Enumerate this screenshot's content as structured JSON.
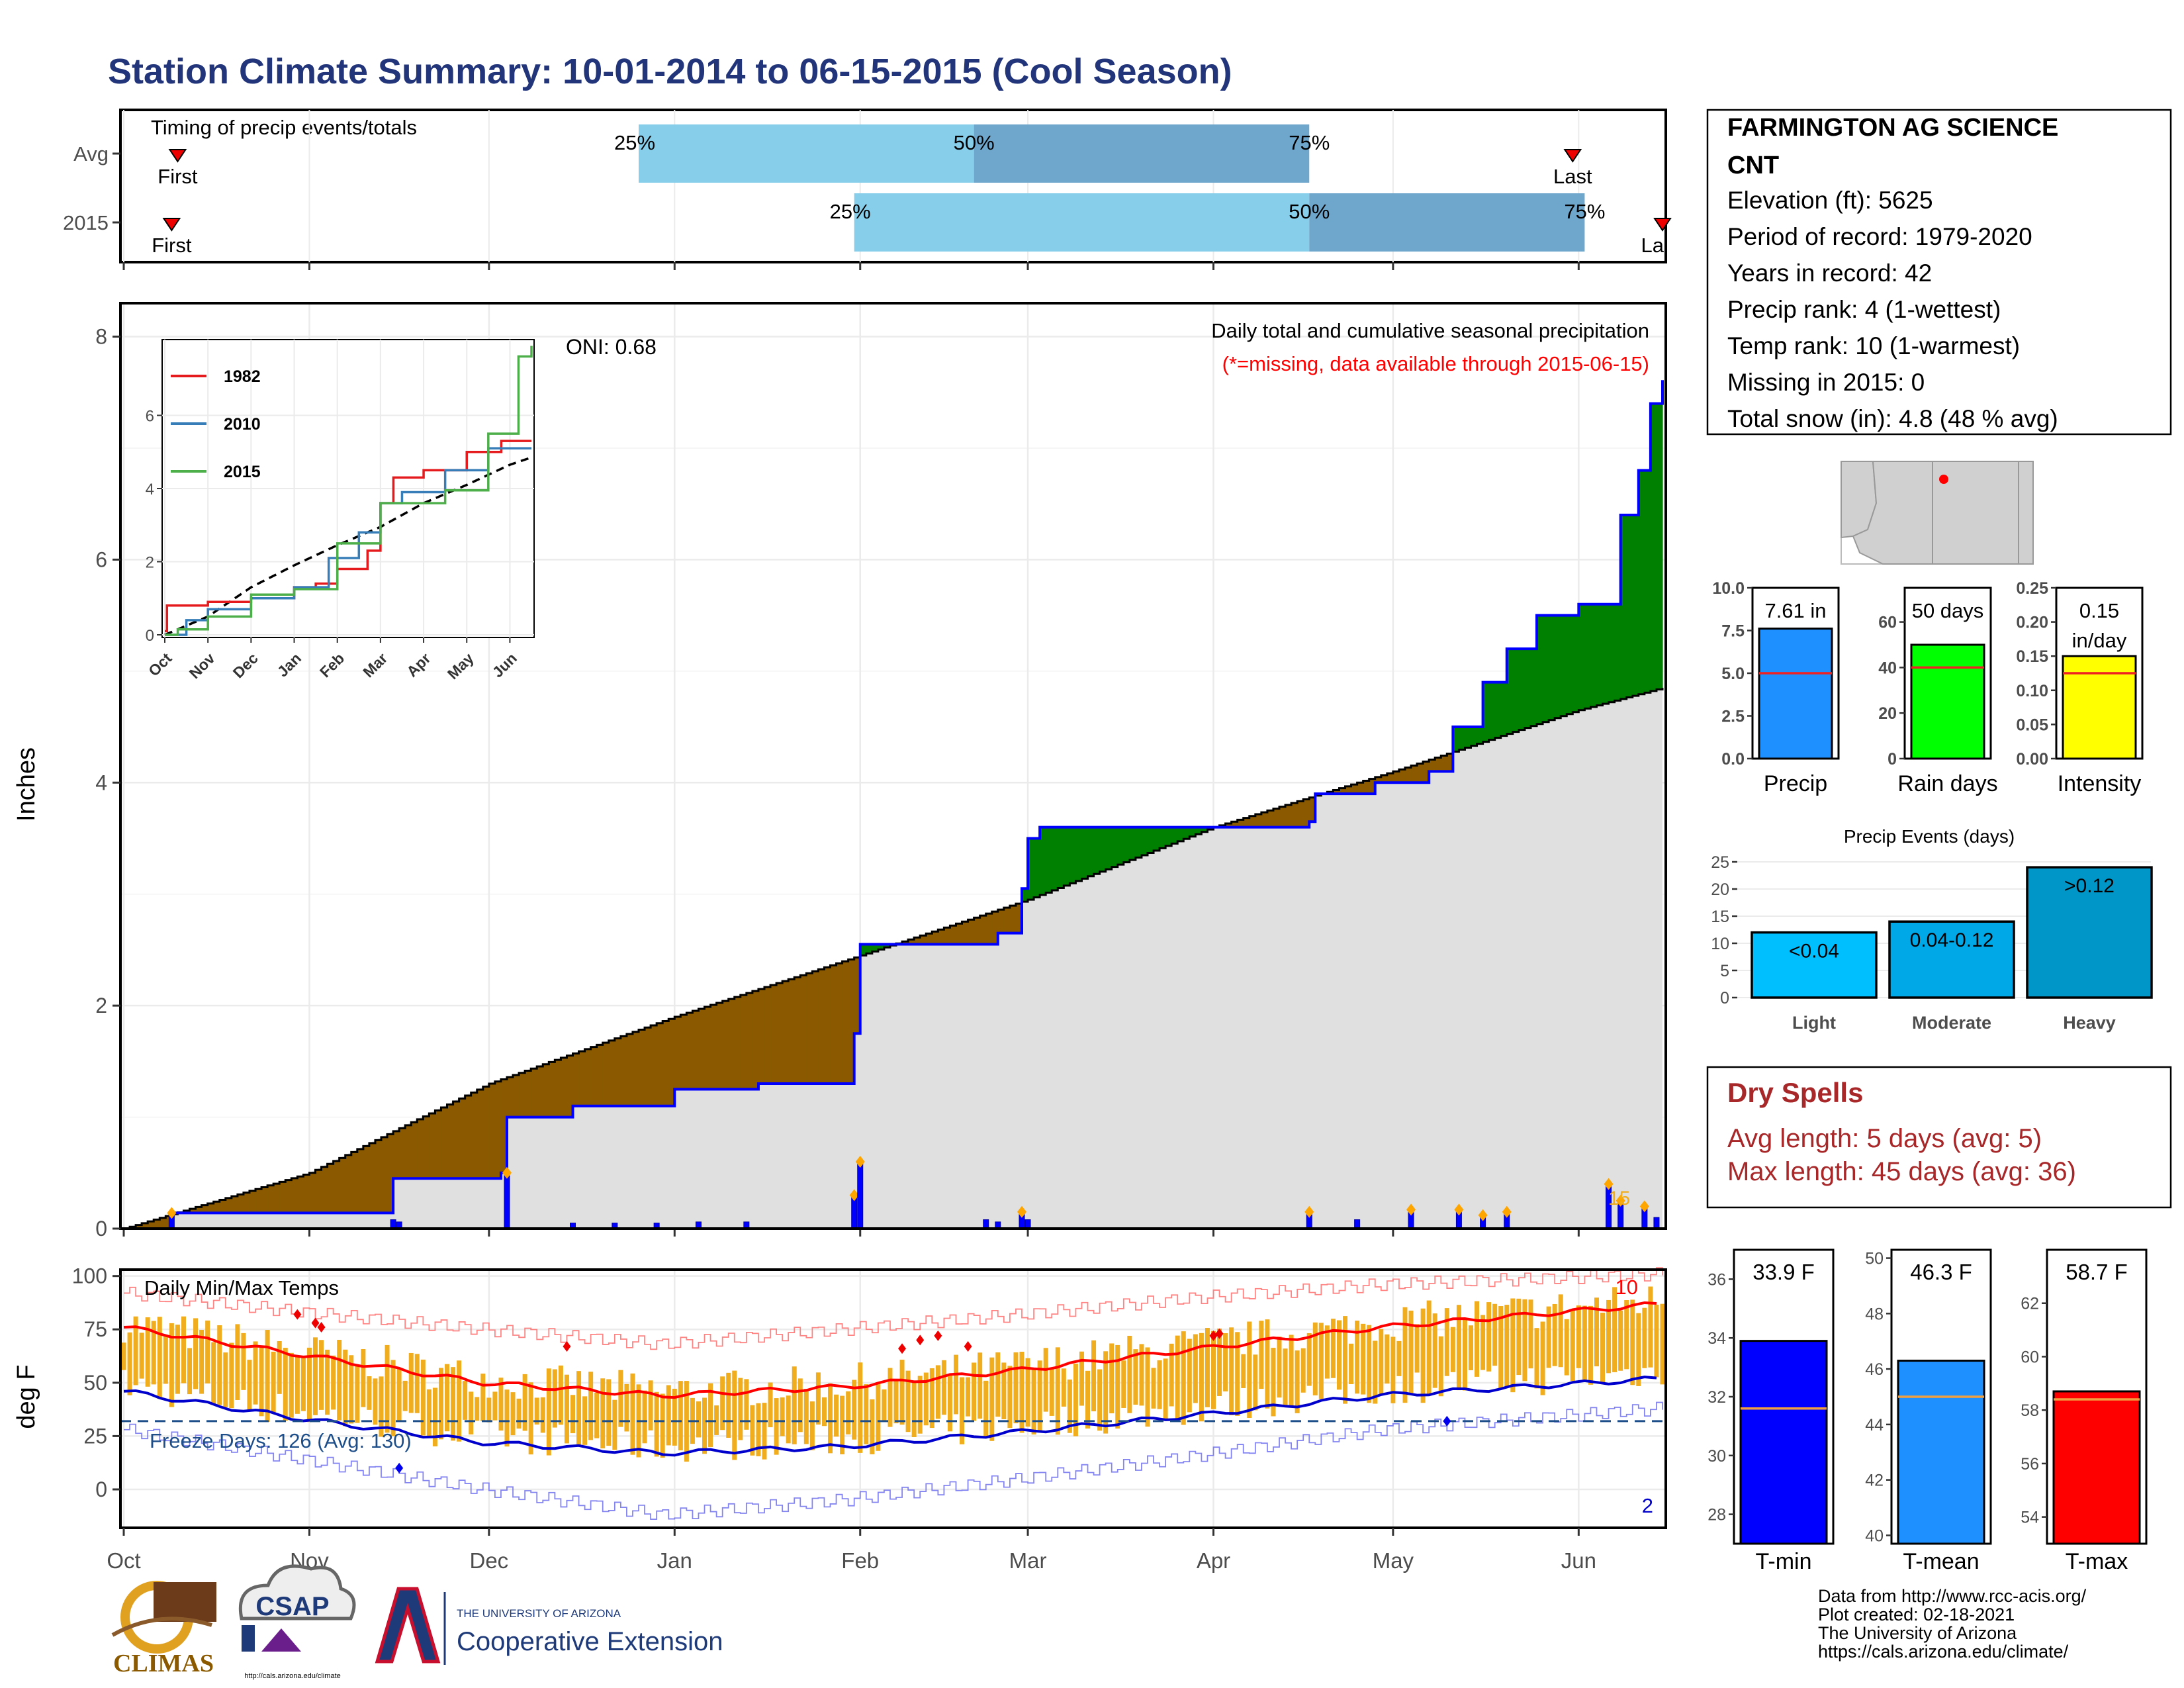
{
  "title": "Station Climate Summary: 10-01-2014 to 06-15-2015 (Cool Season)",
  "colors": {
    "title": "#22357a",
    "bar_light": "#87ceeb",
    "bar_mid": "#6ea6cc",
    "above_avg": "#008000",
    "below_avg": "#8b5a00",
    "normal_fill": "#e0e0e0",
    "daily_bar": "#0000ff",
    "temp_bar": "#f0ad1e",
    "tmax_line": "#ff0000",
    "tmin_line": "#0000cc",
    "dry_spell": "#a8282a"
  },
  "timing_panel": {
    "label": "Timing of precip events/totals",
    "first_label": "First",
    "last_label": "Last",
    "rows": [
      {
        "name": "Avg",
        "first": "10-10",
        "p25": "12-26",
        "p50": "02-20",
        "p75": "04-17",
        "last": "05-31",
        "p25_label": "25%",
        "p50_label": "50%",
        "p75_label": "75%"
      },
      {
        "name": "2015",
        "first": "10-09",
        "p25": "01-31",
        "p50": "04-17",
        "p75": "06-02",
        "last": "06-15",
        "p25_label": "25%",
        "p50_label": "50%",
        "p75_label": "75%"
      }
    ],
    "last_truncated_label": "La"
  },
  "chart_data": [
    {
      "type": "area",
      "name": "cumulative_precip",
      "annotation_title": "Daily total and cumulative seasonal precipitation",
      "annotation_missing": "(*=missing, data available through 2015-06-15)",
      "oni": "ONI: 0.68",
      "ylabel": "Inches",
      "ylim": [
        0,
        8.3
      ],
      "yticks": [
        0,
        2,
        4,
        6,
        8
      ],
      "grid": true,
      "x_dates": [
        "2014-10-01",
        "2015-06-15"
      ],
      "month_labels": [
        "Oct",
        "Nov",
        "Dec",
        "Jan",
        "Feb",
        "Mar",
        "Apr",
        "May",
        "Jun"
      ],
      "normal_cumulative": [
        [
          "10-01",
          0
        ],
        [
          "11-01",
          0.5
        ],
        [
          "12-01",
          1.3
        ],
        [
          "01-01",
          1.9
        ],
        [
          "02-01",
          2.45
        ],
        [
          "03-01",
          2.95
        ],
        [
          "04-01",
          3.6
        ],
        [
          "05-01",
          4.1
        ],
        [
          "06-01",
          4.65
        ],
        [
          "06-15",
          4.85
        ]
      ],
      "observed_cumulative": [
        [
          "10-01",
          0
        ],
        [
          "10-09",
          0.14
        ],
        [
          "11-01",
          0.14
        ],
        [
          "11-15",
          0.45
        ],
        [
          "12-03",
          0.5
        ],
        [
          "12-04",
          1.0
        ],
        [
          "12-15",
          1.1
        ],
        [
          "01-01",
          1.25
        ],
        [
          "01-15",
          1.3
        ],
        [
          "01-31",
          1.75
        ],
        [
          "02-01",
          2.55
        ],
        [
          "02-21",
          2.55
        ],
        [
          "02-24",
          2.65
        ],
        [
          "02-28",
          3.05
        ],
        [
          "03-01",
          3.5
        ],
        [
          "03-03",
          3.6
        ],
        [
          "04-01",
          3.6
        ],
        [
          "04-17",
          3.65
        ],
        [
          "04-18",
          3.9
        ],
        [
          "04-28",
          4.0
        ],
        [
          "05-07",
          4.1
        ],
        [
          "05-11",
          4.5
        ],
        [
          "05-16",
          4.9
        ],
        [
          "05-20",
          5.2
        ],
        [
          "05-25",
          5.5
        ],
        [
          "06-01",
          5.6
        ],
        [
          "06-08",
          6.4
        ],
        [
          "06-11",
          6.8
        ],
        [
          "06-13",
          7.4
        ],
        [
          "06-15",
          7.61
        ]
      ],
      "daily_precip": [
        [
          "10-09",
          0.14
        ],
        [
          "11-15",
          0.08
        ],
        [
          "11-16",
          0.06
        ],
        [
          "12-04",
          0.5
        ],
        [
          "12-15",
          0.05
        ],
        [
          "12-22",
          0.05
        ],
        [
          "12-29",
          0.05
        ],
        [
          "01-05",
          0.06
        ],
        [
          "01-13",
          0.06
        ],
        [
          "01-31",
          0.3
        ],
        [
          "02-01",
          0.6
        ],
        [
          "02-22",
          0.08
        ],
        [
          "02-24",
          0.06
        ],
        [
          "02-28",
          0.15
        ],
        [
          "03-01",
          0.08
        ],
        [
          "04-17",
          0.15
        ],
        [
          "04-25",
          0.08
        ],
        [
          "05-04",
          0.17
        ],
        [
          "05-12",
          0.17
        ],
        [
          "05-16",
          0.12
        ],
        [
          "05-20",
          0.15
        ],
        [
          "06-06",
          0.4
        ],
        [
          "06-08",
          0.25
        ],
        [
          "06-12",
          0.2
        ],
        [
          "06-14",
          0.1
        ]
      ],
      "missing_marker": "15",
      "inset": {
        "type": "line",
        "ylim": [
          0,
          8
        ],
        "yticks": [
          0,
          2,
          4,
          6
        ],
        "month_labels": [
          "Oct",
          "Nov",
          "Dec",
          "Jan",
          "Feb",
          "Mar",
          "Apr",
          "May",
          "Jun"
        ],
        "series": [
          {
            "name": "1982",
            "color": "#e41a1c",
            "values": [
              [
                0,
                0.1
              ],
              [
                0.05,
                0.8
              ],
              [
                1,
                0.9
              ],
              [
                2,
                1.0
              ],
              [
                3,
                1.3
              ],
              [
                3.5,
                1.4
              ],
              [
                4,
                1.8
              ],
              [
                4.7,
                2.3
              ],
              [
                5,
                3.6
              ],
              [
                5.3,
                4.3
              ],
              [
                6,
                4.5
              ],
              [
                7,
                5.0
              ],
              [
                7.8,
                5.3
              ],
              [
                8.5,
                5.3
              ]
            ]
          },
          {
            "name": "2010",
            "color": "#377eb8",
            "values": [
              [
                0,
                0
              ],
              [
                0.5,
                0.4
              ],
              [
                1,
                0.7
              ],
              [
                2,
                1.0
              ],
              [
                3,
                1.3
              ],
              [
                3.8,
                2.1
              ],
              [
                4.5,
                2.8
              ],
              [
                5,
                3.6
              ],
              [
                5.5,
                3.9
              ],
              [
                6.5,
                4.5
              ],
              [
                7.5,
                5.1
              ],
              [
                8.5,
                5.1
              ]
            ]
          },
          {
            "name": "2015",
            "color": "#4daf4a",
            "values": [
              [
                0,
                0
              ],
              [
                0.3,
                0.15
              ],
              [
                1,
                0.5
              ],
              [
                2,
                1.1
              ],
              [
                3,
                1.25
              ],
              [
                4,
                2.5
              ],
              [
                5,
                3.6
              ],
              [
                6.5,
                3.95
              ],
              [
                7.5,
                5.5
              ],
              [
                8.2,
                7.61
              ],
              [
                8.5,
                7.9
              ]
            ]
          }
        ],
        "normal": [
          [
            0,
            0
          ],
          [
            1,
            0.5
          ],
          [
            2,
            1.3
          ],
          [
            3,
            1.9
          ],
          [
            4,
            2.45
          ],
          [
            5,
            2.95
          ],
          [
            6,
            3.6
          ],
          [
            7,
            4.1
          ],
          [
            8,
            4.65
          ],
          [
            8.5,
            4.85
          ]
        ]
      }
    },
    {
      "type": "bar",
      "name": "daily_temps",
      "label": "Daily Min/Max Temps",
      "freeze_label": "Freeze Days: 126 (Avg: 130)",
      "ylabel": "deg F",
      "ylim": [
        -18,
        103
      ],
      "yticks": [
        0,
        25,
        50,
        75,
        100
      ],
      "freeze_line": 32,
      "record_high_count": "10",
      "record_low_count": "2",
      "month_labels": [
        "Oct",
        "Nov",
        "Dec",
        "Jan",
        "Feb",
        "Mar",
        "Apr",
        "May",
        "Jun"
      ],
      "normal_tmax": [
        [
          0,
          76
        ],
        [
          30,
          63
        ],
        [
          60,
          50
        ],
        [
          90,
          44
        ],
        [
          120,
          48
        ],
        [
          150,
          56
        ],
        [
          180,
          66
        ],
        [
          210,
          76
        ],
        [
          257,
          87
        ]
      ],
      "normal_tmin": [
        [
          0,
          46
        ],
        [
          30,
          33
        ],
        [
          60,
          22
        ],
        [
          90,
          17
        ],
        [
          120,
          20
        ],
        [
          150,
          27
        ],
        [
          180,
          35
        ],
        [
          210,
          44
        ],
        [
          257,
          52
        ]
      ],
      "record_max": [
        [
          0,
          92
        ],
        [
          30,
          83
        ],
        [
          60,
          75
        ],
        [
          90,
          68
        ],
        [
          120,
          75
        ],
        [
          150,
          82
        ],
        [
          180,
          90
        ],
        [
          210,
          96
        ],
        [
          257,
          101
        ]
      ],
      "record_min": [
        [
          0,
          28
        ],
        [
          30,
          14
        ],
        [
          60,
          0
        ],
        [
          90,
          -12
        ],
        [
          120,
          -5
        ],
        [
          150,
          5
        ],
        [
          180,
          16
        ],
        [
          210,
          28
        ],
        [
          257,
          38
        ]
      ]
    },
    {
      "type": "bar",
      "name": "season_totals",
      "bars": [
        {
          "label": "Precip",
          "value_label": "7.61 in",
          "value": 7.61,
          "avg": 5.0,
          "color": "#1e90ff",
          "ylim": [
            0,
            10
          ],
          "yticks": [
            "0.0",
            "2.5",
            "5.0",
            "7.5",
            "10.0"
          ]
        },
        {
          "label": "Rain days",
          "value_label": "50 days",
          "value": 50,
          "avg": 40,
          "color": "#00ff00",
          "ylim": [
            0,
            75
          ],
          "yticks": [
            "0",
            "20",
            "40",
            "60"
          ]
        },
        {
          "label": "Intensity",
          "value_label": "0.15 in/day",
          "value_line1": "0.15",
          "value_line2": "in/day",
          "value": 0.15,
          "avg": 0.125,
          "color": "#ffff00",
          "ylim": [
            0,
            0.25
          ],
          "yticks": [
            "0.00",
            "0.05",
            "0.10",
            "0.15",
            "0.20",
            "0.25"
          ]
        }
      ]
    },
    {
      "type": "bar",
      "name": "precip_events",
      "title": "Precip Events (days)",
      "categories": [
        "Light",
        "Moderate",
        "Heavy"
      ],
      "bar_labels": [
        "<0.04",
        "0.04-0.12",
        ">0.12"
      ],
      "values": [
        12,
        14,
        24
      ],
      "ylim": [
        0,
        25
      ],
      "yticks": [
        "0",
        "5",
        "10",
        "15",
        "20",
        "25"
      ],
      "colors": [
        "#00bfff",
        "#00a8e8",
        "#0096c8"
      ]
    },
    {
      "type": "bar",
      "name": "temp_means",
      "bars": [
        {
          "label": "T-min",
          "value_label": "33.9 F",
          "value": 33.9,
          "avg": 31.6,
          "color": "#0000ff",
          "ylim": [
            27,
            37
          ],
          "yticks": [
            "28",
            "30",
            "32",
            "34",
            "36"
          ]
        },
        {
          "label": "T-mean",
          "value_label": "46.3 F",
          "value": 46.3,
          "avg": 45.0,
          "color": "#1e90ff",
          "ylim": [
            39.7,
            50.3
          ],
          "yticks": [
            "40",
            "42",
            "44",
            "46",
            "48",
            "50"
          ]
        },
        {
          "label": "T-max",
          "value_label": "58.7 F",
          "value": 58.7,
          "avg": 58.4,
          "color": "#ff0000",
          "ylim": [
            53,
            64
          ],
          "yticks": [
            "54",
            "56",
            "58",
            "60",
            "62"
          ]
        }
      ]
    }
  ],
  "station": {
    "name_line1": "FARMINGTON AG SCIENCE",
    "name_line2": "CNT",
    "lines": [
      "Elevation (ft): 5625",
      "Period of record: 1979-2020",
      "Years in record: 42",
      "Precip rank: 4 (1-wettest)",
      "Temp rank: 10 (1-warmest)",
      "Missing in 2015: 0",
      "Total snow (in): 4.8 (48 % avg)"
    ]
  },
  "dry_spells": {
    "title": "Dry Spells",
    "avg_line": "Avg length: 5 days (avg: 5)",
    "max_line": "Max length: 45 days (avg: 36)"
  },
  "footer": {
    "logo1_text": "CLIMAS",
    "logo2_text": "CSAP",
    "logo2_url": "http://cals.arizona.edu/climate",
    "logo3_line1": "THE UNIVERSITY OF ARIZONA",
    "logo3_line2": "Cooperative Extension",
    "credits": [
      "Data from http://www.rcc-acis.org/",
      "Plot created: 02-18-2021",
      "The University of Arizona",
      "https://cals.arizona.edu/climate/"
    ]
  }
}
